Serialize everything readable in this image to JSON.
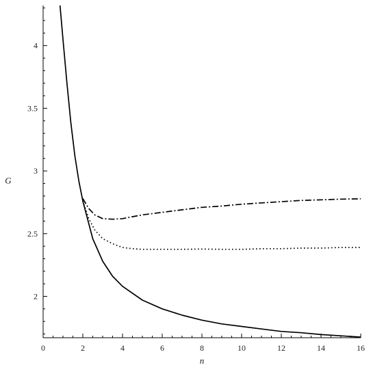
{
  "chart_data": {
    "type": "line",
    "title": "",
    "xlabel": "n",
    "ylabel": "G",
    "xlim": [
      0,
      16
    ],
    "ylim": [
      1.67,
      4.32
    ],
    "xticks": [
      0,
      2,
      4,
      6,
      8,
      10,
      12,
      14,
      16
    ],
    "yticks": [
      2,
      2.5,
      3,
      3.5,
      4
    ],
    "xtick_labels": [
      "0",
      "2",
      "4",
      "6",
      "8",
      "10",
      "12",
      "14",
      "16"
    ],
    "ytick_labels": [
      "2",
      "2.5",
      "3",
      "3.5",
      "4"
    ],
    "grid": false,
    "legend": "none",
    "series": [
      {
        "style": "solid",
        "x": [
          0.85,
          1,
          1.2,
          1.4,
          1.6,
          1.8,
          2,
          2.5,
          3,
          3.5,
          4,
          5,
          6,
          7,
          8,
          9,
          10,
          11,
          12,
          13,
          14,
          15,
          16
        ],
        "y": [
          4.32,
          4.05,
          3.7,
          3.38,
          3.12,
          2.92,
          2.76,
          2.46,
          2.28,
          2.16,
          2.08,
          1.97,
          1.9,
          1.85,
          1.81,
          1.78,
          1.76,
          1.74,
          1.72,
          1.71,
          1.695,
          1.685,
          1.675
        ]
      },
      {
        "style": "dotted",
        "x": [
          2,
          2.3,
          2.6,
          3,
          3.5,
          4,
          4.5,
          5,
          6,
          7,
          8,
          9,
          10,
          11,
          12,
          13,
          14,
          15,
          16
        ],
        "y": [
          2.76,
          2.62,
          2.53,
          2.46,
          2.42,
          2.39,
          2.38,
          2.375,
          2.375,
          2.375,
          2.377,
          2.375,
          2.375,
          2.38,
          2.38,
          2.385,
          2.385,
          2.39,
          2.39
        ]
      },
      {
        "style": "dashdot",
        "x": [
          2,
          2.3,
          2.6,
          3,
          3.5,
          4,
          4.5,
          5,
          6,
          7,
          8,
          9,
          10,
          11,
          12,
          13,
          14,
          15,
          16
        ],
        "y": [
          2.78,
          2.7,
          2.65,
          2.62,
          2.615,
          2.62,
          2.635,
          2.65,
          2.67,
          2.69,
          2.71,
          2.72,
          2.735,
          2.745,
          2.755,
          2.765,
          2.77,
          2.775,
          2.778
        ]
      }
    ]
  }
}
